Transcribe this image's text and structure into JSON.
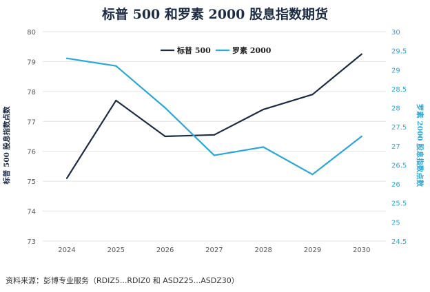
{
  "chart_data": {
    "type": "line",
    "title": "标普 500 和罗素 2000 股息指数期货",
    "categories": [
      "2024",
      "2025",
      "2026",
      "2027",
      "2028",
      "2029",
      "2030"
    ],
    "series": [
      {
        "name": "标普 500",
        "axis": "left",
        "color": "#1c2b44",
        "values": [
          75.1,
          77.7,
          76.5,
          76.55,
          77.4,
          77.9,
          79.25
        ]
      },
      {
        "name": "罗素 2000",
        "axis": "right",
        "color": "#2aa7d6",
        "values": [
          29.3,
          29.1,
          28.0,
          26.75,
          26.97,
          26.25,
          27.25
        ]
      }
    ],
    "ylabel": "标普 500 股息指数点数",
    "y2label": "罗素 2000 股息指数点数",
    "ylim": [
      73,
      80
    ],
    "y2lim": [
      24.5,
      30
    ],
    "yticks": [
      "73",
      "74",
      "75",
      "76",
      "77",
      "78",
      "79",
      "80"
    ],
    "y2ticks": [
      "24.5",
      "25",
      "25.5",
      "26",
      "26.5",
      "27",
      "27.5",
      "28",
      "28.5",
      "29",
      "29.5",
      "30"
    ],
    "grid": true,
    "legend_position": "top-center"
  },
  "footer": {
    "source": "资料来源：彭博专业服务（RDIZ5...RDIZ0 和 ASDZ25...ASDZ30）"
  }
}
